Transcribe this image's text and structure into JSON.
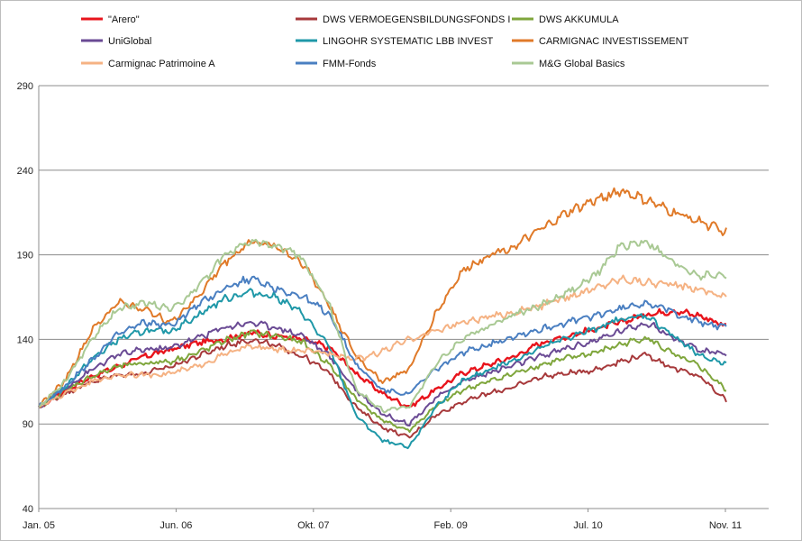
{
  "chart_data": {
    "type": "line",
    "title": "",
    "xlabel": "",
    "ylabel": "",
    "x_ticks": [
      "Jan. 05",
      "Jun. 06",
      "Okt. 07",
      "Feb. 09",
      "Jul. 10",
      "Nov. 11"
    ],
    "y_ticks": [
      40,
      90,
      140,
      190,
      240,
      290
    ],
    "ylim": [
      40,
      290
    ],
    "grid": "horizontal",
    "legend_position": "top",
    "series": [
      {
        "name": "\"Arero\"",
        "color": "#e8141c",
        "values": [
          100,
          110,
          118,
          124,
          130,
          134,
          138,
          140,
          144,
          142,
          140,
          135,
          120,
          108,
          100,
          110,
          120,
          125,
          130,
          138,
          142,
          146,
          150,
          155,
          157,
          154,
          148
        ]
      },
      {
        "name": "DWS VERMOEGENSBILDUNGSFONDS  I",
        "color": "#a7393b",
        "values": [
          100,
          108,
          115,
          119,
          120,
          124,
          130,
          136,
          140,
          136,
          130,
          120,
          100,
          88,
          82,
          95,
          103,
          108,
          112,
          118,
          120,
          122,
          127,
          131,
          123,
          118,
          104
        ]
      },
      {
        "name": "DWS AKKUMULA",
        "color": "#7fa63c",
        "values": [
          100,
          110,
          118,
          124,
          126,
          127,
          132,
          139,
          144,
          142,
          138,
          125,
          105,
          92,
          86,
          100,
          110,
          115,
          120,
          125,
          129,
          132,
          137,
          141,
          131,
          124,
          110
        ]
      },
      {
        "name": "UniGlobal",
        "color": "#6a4a94",
        "values": [
          100,
          111,
          122,
          131,
          134,
          135,
          141,
          147,
          150,
          147,
          142,
          130,
          110,
          96,
          90,
          105,
          115,
          120,
          125,
          130,
          135,
          139,
          145,
          150,
          141,
          133,
          132
        ]
      },
      {
        "name": "LINGOHR SYSTEMATIC  LBB INVEST",
        "color": "#1f98a8",
        "values": [
          100,
          112,
          128,
          140,
          145,
          145,
          154,
          164,
          168,
          165,
          155,
          135,
          95,
          80,
          76,
          100,
          115,
          122,
          128,
          135,
          141,
          146,
          152,
          154,
          142,
          130,
          126
        ]
      },
      {
        "name": "CARMIGNAC INVESTISSEMENT",
        "color": "#e07a29",
        "values": [
          100,
          116,
          145,
          162,
          158,
          150,
          165,
          185,
          198,
          195,
          185,
          160,
          130,
          115,
          122,
          155,
          180,
          190,
          195,
          205,
          215,
          222,
          228,
          222,
          215,
          210,
          203
        ]
      },
      {
        "name": "Carmignac Patrimoine A",
        "color": "#f5b283",
        "values": [
          100,
          108,
          115,
          119,
          119,
          120,
          124,
          131,
          136,
          134,
          133,
          132,
          128,
          133,
          140,
          145,
          150,
          153,
          156,
          160,
          165,
          170,
          176,
          174,
          172,
          170,
          165
        ]
      },
      {
        "name": "FMM-Fonds",
        "color": "#4a7fc1",
        "values": [
          100,
          112,
          128,
          143,
          150,
          148,
          160,
          170,
          176,
          170,
          165,
          155,
          125,
          110,
          108,
          122,
          132,
          137,
          142,
          146,
          150,
          154,
          158,
          162,
          156,
          150,
          147
        ]
      },
      {
        "name": "M&G Global Basics",
        "color": "#a9c994",
        "values": [
          100,
          115,
          140,
          158,
          162,
          158,
          170,
          190,
          198,
          195,
          188,
          160,
          110,
          98,
          100,
          125,
          140,
          148,
          155,
          160,
          168,
          177,
          195,
          198,
          185,
          178,
          178
        ]
      }
    ]
  }
}
